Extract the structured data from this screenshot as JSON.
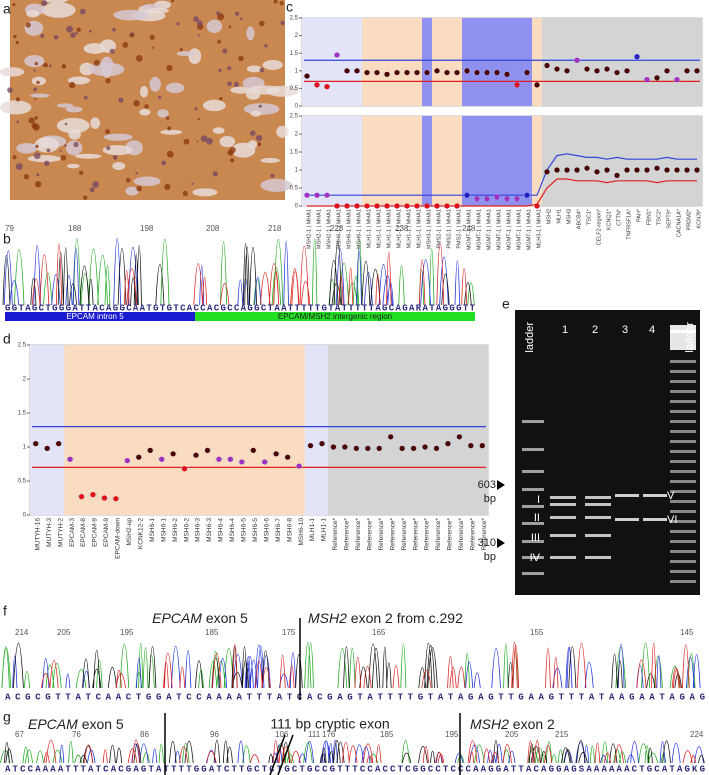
{
  "panel_labels": [
    "a",
    "b",
    "c",
    "d",
    "e",
    "f",
    "g"
  ],
  "b": {
    "positions": [
      79,
      188,
      198,
      208,
      218,
      228,
      238,
      248
    ],
    "sequence": "GGTAGCTGGGATTACAGGCAATGTGTCACCACGCCAGGCTAATTTTTGTATTTTTAGCAGARATAGGGTT",
    "regions": [
      "EPCAM intron 5",
      "EPCAM/MSH2 intergenic region"
    ]
  },
  "e": {
    "lanes": [
      "ladder",
      "1",
      "2",
      "3",
      "4",
      "ladder"
    ],
    "markers": [
      {
        "size": "603",
        "unit": "bp"
      },
      {
        "size": "310",
        "unit": "bp"
      }
    ],
    "bands": [
      "I",
      "II",
      "III",
      "IV",
      "V",
      "VI"
    ]
  },
  "f": {
    "left_title": {
      "gene": "EPCAM",
      "rest": "exon 5"
    },
    "right_title": {
      "gene": "MSH2",
      "rest": "exon 2 from c.292"
    },
    "positions": [
      214,
      205,
      195,
      185,
      175,
      165,
      155,
      145
    ],
    "sequence": "ACGCGTTATCAACTGGATCCAAAATTTATCACGAGTATTTTGTATAGAGTTGAAGTTTATAAGAATAGAG"
  },
  "g": {
    "left_title": {
      "gene": "EPCAM",
      "rest": "exon 5"
    },
    "middle_title": "111 bp cryptic exon",
    "right_title": {
      "gene": "MSH2",
      "rest": "exon 2"
    },
    "positions": [
      67,
      76,
      86,
      96,
      106,
      111,
      176,
      185,
      195,
      205,
      215,
      224
    ],
    "sequence": "ATCCAAAATTTATCACGAGTATTTTGGATCTTGCTCTGCTGCCGTTTCCACCTCGGCCTCCCAAGGATTACAGGAGSAAAAAACTGCATAGKG"
  },
  "chart_data": [
    {
      "type": "dot",
      "ylim": [
        0,
        2.5
      ],
      "yticks": [
        0,
        0.5,
        1,
        1.5,
        2,
        2.5
      ],
      "values": [
        0.85,
        0.6,
        0.55,
        1.45,
        1.0,
        1.0,
        0.95,
        0.95,
        0.9,
        0.95,
        0.95,
        0.95,
        0.95,
        1.0,
        0.95,
        0.95,
        1.0,
        0.95,
        0.95,
        0.95,
        0.9,
        0.6,
        0.95,
        0.6,
        1.15,
        1.05,
        1.0,
        1.3,
        1.05,
        1.0,
        1.05,
        0.95,
        1.0,
        1.4,
        0.75,
        0.8,
        1.0,
        0.75,
        1.0,
        1.0
      ],
      "point_colors": [
        "#4a0000",
        "#e0101a",
        "#e0101a",
        "#a030c0",
        "#4a0000",
        "#4a0000",
        "#4a0000",
        "#4a0000",
        "#4a0000",
        "#4a0000",
        "#4a0000",
        "#4a0000",
        "#4a0000",
        "#4a0000",
        "#4a0000",
        "#4a0000",
        "#4a0000",
        "#4a0000",
        "#4a0000",
        "#4a0000",
        "#4a0000",
        "#e0101a",
        "#4a0000",
        "#4a0000",
        "#4a0000",
        "#4a0000",
        "#4a0000",
        "#a030c0",
        "#4a0000",
        "#4a0000",
        "#4a0000",
        "#4a0000",
        "#4a0000",
        "#2020c0",
        "#a030c0",
        "#4a0000",
        "#4a0000",
        "#a030c0",
        "#4a0000",
        "#4a0000"
      ],
      "upper_line": 1.3,
      "lower_line": 0.7,
      "upper_color": "#3344dd",
      "lower_color": "#e02020",
      "regions": [
        {
          "from": 0,
          "to": 5,
          "color": "#e4e4f8"
        },
        {
          "from": 6,
          "to": 11,
          "color": "#fadcc0"
        },
        {
          "from": 12,
          "to": 12,
          "color": "#9090f0"
        },
        {
          "from": 13,
          "to": 15,
          "color": "#fadcc0"
        },
        {
          "from": 16,
          "to": 22,
          "color": "#9090f0"
        },
        {
          "from": 23,
          "to": 23,
          "color": "#fadcc0"
        },
        {
          "from": 24,
          "to": 39,
          "color": "#d4d4d4"
        }
      ]
    },
    {
      "type": "dot",
      "ylim": [
        0,
        2.5
      ],
      "yticks": [
        0,
        0.5,
        1,
        1.5,
        2,
        2.5
      ],
      "categories": [
        "MSH2-1 | MHA1",
        "MSH2-1 | MHA1",
        "MSH2-1 | MHA1",
        "MSH6-1 | MHA1",
        "MSH6-1 | MHA1",
        "MSH6-1 | MHA1",
        "MLH1-1 | MHA1",
        "MLH1-1 | MHA1",
        "MLH1-1 | MHA1",
        "MLH1-1 | MHA1",
        "MLH1-1 | MHA1",
        "MLH1-1 | MHA1",
        "MSH3-1 | MHA1",
        "PMS2-1 | MHA1",
        "PMS2-1 | MHA1",
        "PMS2-1 | MHA1",
        "MGMT-1 | MHA1",
        "MGMT-1 | MHA1",
        "MGMT-1 | MHA1",
        "MGMT-1 | MHA1",
        "MGMT-1 | MHA1",
        "MGMT-1 | MHA1",
        "MGMT-1 | MHA1",
        "MLH3-1 | MHA1",
        "MSH2",
        "MLH1",
        "MSH3",
        "ABCB4*",
        "TSC1*",
        "CELF2-region*",
        "KCNQ1*",
        "CTTN*",
        "TNFRSF1A*",
        "PAH*",
        "FBN1*",
        "TSC2*",
        "SEPT9*",
        "CACNA1A*",
        "PRDM2*",
        "KCNJ9*"
      ],
      "values": [
        0.3,
        0.3,
        0.3,
        0,
        0,
        0,
        0,
        0,
        0,
        0,
        0,
        0,
        0,
        0,
        0,
        0,
        0.3,
        0.2,
        0.2,
        0.25,
        0.2,
        0.2,
        0.3,
        0,
        0.95,
        1.0,
        1.0,
        1.0,
        1.05,
        0.95,
        1.0,
        0.85,
        1.0,
        1.0,
        1.0,
        1.05,
        1.0,
        1.0,
        1.0,
        1.0
      ],
      "point_colors": [
        "#a030c0",
        "#a030c0",
        "#a030c0",
        "#e0101a",
        "#e0101a",
        "#e0101a",
        "#e0101a",
        "#e0101a",
        "#e0101a",
        "#e0101a",
        "#e0101a",
        "#e0101a",
        "#e0101a",
        "#e0101a",
        "#e0101a",
        "#e0101a",
        "#2020c0",
        "#a030c0",
        "#a030c0",
        "#a030c0",
        "#a030c0",
        "#a030c0",
        "#2020c0",
        "#e0101a",
        "#4a0000",
        "#4a0000",
        "#4a0000",
        "#4a0000",
        "#4a0000",
        "#4a0000",
        "#4a0000",
        "#4a0000",
        "#4a0000",
        "#4a0000",
        "#4a0000",
        "#4a0000",
        "#4a0000",
        "#4a0000",
        "#4a0000",
        "#4a0000"
      ],
      "upper_line": [
        0.3,
        0.3,
        0.3,
        0.3,
        0.3,
        0.3,
        0.3,
        0.3,
        0.3,
        0.3,
        0.3,
        0.3,
        0.3,
        0.3,
        0.3,
        0.3,
        0.3,
        0.3,
        0.3,
        0.3,
        0.3,
        0.3,
        0.3,
        0.3,
        1.0,
        1.4,
        1.45,
        1.4,
        1.35,
        1.35,
        1.3,
        1.35,
        1.3,
        1.3,
        1.3,
        1.3,
        1.35,
        1.3,
        1.3,
        1.3
      ],
      "lower_line": [
        0,
        0,
        0,
        0,
        0,
        0,
        0,
        0,
        0,
        0,
        0,
        0,
        0,
        0,
        0,
        0,
        0,
        0,
        0,
        0,
        0,
        0,
        0,
        0.05,
        0.5,
        0.75,
        0.75,
        0.7,
        0.7,
        0.7,
        0.65,
        0.7,
        0.7,
        0.7,
        0.7,
        0.65,
        0.7,
        0.7,
        0.7,
        0.7
      ],
      "upper_color": "#3344dd",
      "lower_color": "#e02020",
      "regions": [
        {
          "from": 0,
          "to": 5,
          "color": "#e4e4f8"
        },
        {
          "from": 6,
          "to": 11,
          "color": "#fadcc0"
        },
        {
          "from": 12,
          "to": 12,
          "color": "#9090f0"
        },
        {
          "from": 13,
          "to": 15,
          "color": "#fadcc0"
        },
        {
          "from": 16,
          "to": 22,
          "color": "#9090f0"
        },
        {
          "from": 23,
          "to": 23,
          "color": "#fadcc0"
        },
        {
          "from": 24,
          "to": 39,
          "color": "#d4d4d4"
        }
      ]
    },
    {
      "type": "dot",
      "ylim": [
        0,
        2.5
      ],
      "yticks": [
        0,
        0.5,
        1,
        1.5,
        2,
        2.5
      ],
      "categories": [
        "MUTYH-16",
        "MUTYH-3",
        "MUTYH-2",
        "EPCAM-3",
        "EPCAM-8",
        "EPCAM-9",
        "EPCAM-9",
        "EPCAM-down",
        "MSH2-up",
        "KCNK12-2",
        "MSH6-1",
        "MSH6-1",
        "MSH6-2",
        "MSH6-2",
        "MSH6-3",
        "MSH6-3",
        "MSH6-4",
        "MSH6-4",
        "MSH6-5",
        "MSH6-5",
        "MSH6-6",
        "MSH6-7",
        "MSH6-8",
        "MSH6-10",
        "MLH1-1",
        "MLH1-1",
        "Reference*",
        "Reference*",
        "Reference*",
        "Reference*",
        "Reference*",
        "Reference*",
        "Reference*",
        "Reference*",
        "Reference*",
        "Reference*",
        "Reference*",
        "Reference*",
        "Reference*",
        "Reference*"
      ],
      "values": [
        1.05,
        0.98,
        1.05,
        0.82,
        0.27,
        0.3,
        0.25,
        0.24,
        0.8,
        0.85,
        0.95,
        0.82,
        0.9,
        0.68,
        0.88,
        0.95,
        0.82,
        0.82,
        0.78,
        0.95,
        0.78,
        0.9,
        0.85,
        0.72,
        1.02,
        1.05,
        1.0,
        1.0,
        0.98,
        0.98,
        0.98,
        1.15,
        0.98,
        0.98,
        1.0,
        0.98,
        1.05,
        1.15,
        1.02,
        1.02
      ],
      "point_colors": [
        "#4a0000",
        "#4a0000",
        "#4a0000",
        "#a030c0",
        "#e0101a",
        "#e0101a",
        "#e0101a",
        "#e0101a",
        "#a030c0",
        "#4a0000",
        "#4a0000",
        "#a030c0",
        "#4a0000",
        "#e0101a",
        "#4a0000",
        "#4a0000",
        "#a030c0",
        "#a030c0",
        "#a030c0",
        "#4a0000",
        "#a030c0",
        "#4a0000",
        "#4a0000",
        "#a030c0",
        "#4a0000",
        "#4a0000",
        "#4a0000",
        "#4a0000",
        "#4a0000",
        "#4a0000",
        "#4a0000",
        "#4a0000",
        "#4a0000",
        "#4a0000",
        "#4a0000",
        "#4a0000",
        "#4a0000",
        "#4a0000",
        "#4a0000",
        "#4a0000"
      ],
      "upper_line": 1.3,
      "lower_line": 0.7,
      "upper_color": "#3344dd",
      "lower_color": "#e02020",
      "regions": [
        {
          "from": 0,
          "to": 2,
          "color": "#e4e4f8"
        },
        {
          "from": 3,
          "to": 23,
          "color": "#fadcc0"
        },
        {
          "from": 24,
          "to": 25,
          "color": "#e4e4f8"
        },
        {
          "from": 26,
          "to": 39,
          "color": "#d4d4d4"
        }
      ]
    }
  ]
}
